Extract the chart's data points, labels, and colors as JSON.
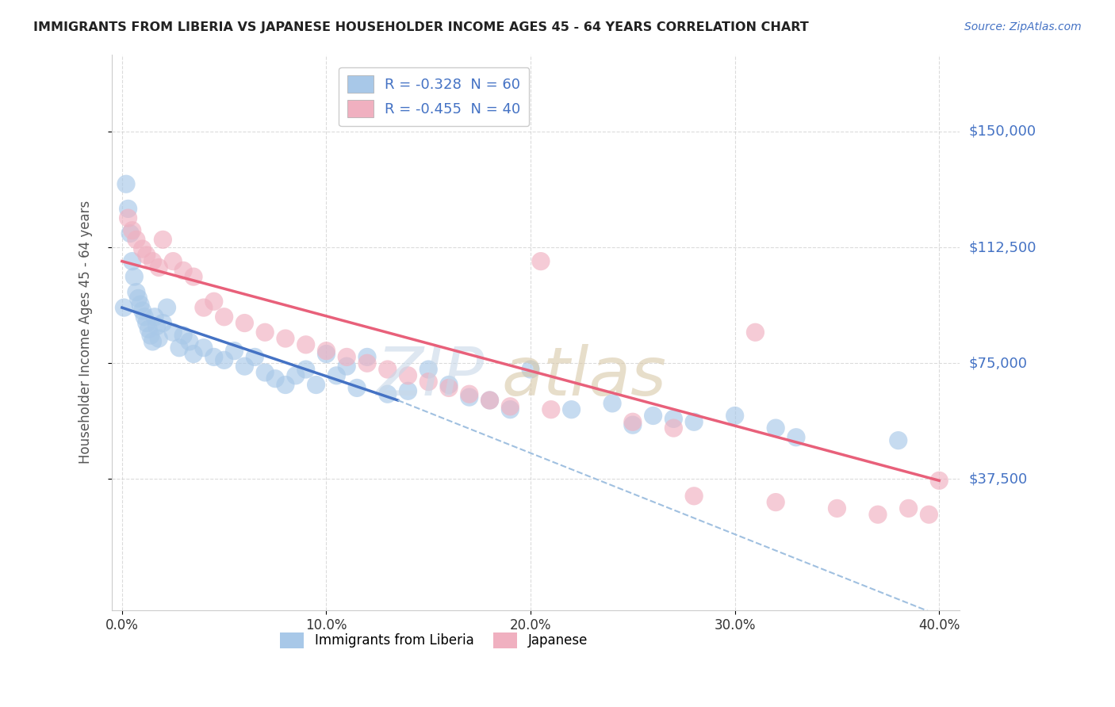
{
  "title": "IMMIGRANTS FROM LIBERIA VS JAPANESE HOUSEHOLDER INCOME AGES 45 - 64 YEARS CORRELATION CHART",
  "source": "Source: ZipAtlas.com",
  "ylabel": "Householder Income Ages 45 - 64 years",
  "x_tick_labels": [
    "0.0%",
    "10.0%",
    "20.0%",
    "30.0%",
    "40.0%"
  ],
  "x_tick_values": [
    0.0,
    10.0,
    20.0,
    30.0,
    40.0
  ],
  "y_tick_labels": [
    "$150,000",
    "$112,500",
    "$75,000",
    "$37,500"
  ],
  "y_tick_values": [
    150000,
    112500,
    75000,
    37500
  ],
  "xlim": [
    -0.5,
    41.0
  ],
  "ylim": [
    -5000,
    175000
  ],
  "legend_entries": [
    {
      "label": "R = -0.328  N = 60",
      "color": "#aec6e8"
    },
    {
      "label": "R = -0.455  N = 40",
      "color": "#f4b8c8"
    }
  ],
  "legend_bottom": [
    {
      "label": "Immigrants from Liberia",
      "color": "#aec6e8"
    },
    {
      "label": "Japanese",
      "color": "#f4b8c8"
    }
  ],
  "blue_scatter": [
    [
      0.1,
      93000
    ],
    [
      0.2,
      133000
    ],
    [
      0.3,
      125000
    ],
    [
      0.4,
      117000
    ],
    [
      0.5,
      108000
    ],
    [
      0.6,
      103000
    ],
    [
      0.7,
      98000
    ],
    [
      0.8,
      96000
    ],
    [
      0.9,
      94000
    ],
    [
      1.0,
      92000
    ],
    [
      1.1,
      90000
    ],
    [
      1.2,
      88000
    ],
    [
      1.3,
      86000
    ],
    [
      1.4,
      84000
    ],
    [
      1.5,
      82000
    ],
    [
      1.6,
      90000
    ],
    [
      1.7,
      87000
    ],
    [
      1.8,
      83000
    ],
    [
      2.0,
      88000
    ],
    [
      2.2,
      93000
    ],
    [
      2.5,
      85000
    ],
    [
      2.8,
      80000
    ],
    [
      3.0,
      84000
    ],
    [
      3.3,
      82000
    ],
    [
      3.5,
      78000
    ],
    [
      4.0,
      80000
    ],
    [
      4.5,
      77000
    ],
    [
      5.0,
      76000
    ],
    [
      5.5,
      79000
    ],
    [
      6.0,
      74000
    ],
    [
      6.5,
      77000
    ],
    [
      7.0,
      72000
    ],
    [
      7.5,
      70000
    ],
    [
      8.0,
      68000
    ],
    [
      8.5,
      71000
    ],
    [
      9.0,
      73000
    ],
    [
      9.5,
      68000
    ],
    [
      10.0,
      78000
    ],
    [
      10.5,
      71000
    ],
    [
      11.0,
      74000
    ],
    [
      11.5,
      67000
    ],
    [
      12.0,
      77000
    ],
    [
      13.0,
      65000
    ],
    [
      14.0,
      66000
    ],
    [
      15.0,
      73000
    ],
    [
      16.0,
      68000
    ],
    [
      17.0,
      64000
    ],
    [
      18.0,
      63000
    ],
    [
      19.0,
      60000
    ],
    [
      20.0,
      73000
    ],
    [
      22.0,
      60000
    ],
    [
      24.0,
      62000
    ],
    [
      25.0,
      55000
    ],
    [
      26.0,
      58000
    ],
    [
      27.0,
      57000
    ],
    [
      28.0,
      56000
    ],
    [
      30.0,
      58000
    ],
    [
      32.0,
      54000
    ],
    [
      33.0,
      51000
    ],
    [
      38.0,
      50000
    ]
  ],
  "pink_scatter": [
    [
      0.3,
      122000
    ],
    [
      0.5,
      118000
    ],
    [
      0.7,
      115000
    ],
    [
      1.0,
      112000
    ],
    [
      1.2,
      110000
    ],
    [
      1.5,
      108000
    ],
    [
      1.8,
      106000
    ],
    [
      2.0,
      115000
    ],
    [
      2.5,
      108000
    ],
    [
      3.0,
      105000
    ],
    [
      3.5,
      103000
    ],
    [
      4.0,
      93000
    ],
    [
      4.5,
      95000
    ],
    [
      5.0,
      90000
    ],
    [
      6.0,
      88000
    ],
    [
      7.0,
      85000
    ],
    [
      8.0,
      83000
    ],
    [
      9.0,
      81000
    ],
    [
      10.0,
      79000
    ],
    [
      11.0,
      77000
    ],
    [
      12.0,
      75000
    ],
    [
      13.0,
      73000
    ],
    [
      14.0,
      71000
    ],
    [
      15.0,
      69000
    ],
    [
      16.0,
      67000
    ],
    [
      17.0,
      65000
    ],
    [
      18.0,
      63000
    ],
    [
      19.0,
      61000
    ],
    [
      20.5,
      108000
    ],
    [
      21.0,
      60000
    ],
    [
      25.0,
      56000
    ],
    [
      27.0,
      54000
    ],
    [
      28.0,
      32000
    ],
    [
      31.0,
      85000
    ],
    [
      32.0,
      30000
    ],
    [
      35.0,
      28000
    ],
    [
      37.0,
      26000
    ],
    [
      38.5,
      28000
    ],
    [
      39.5,
      26000
    ],
    [
      40.0,
      37000
    ]
  ],
  "blue_line": {
    "x": [
      0.0,
      13.5
    ],
    "y": [
      93000,
      63000
    ]
  },
  "pink_line": {
    "x": [
      0.0,
      40.0
    ],
    "y": [
      108000,
      37000
    ]
  },
  "dashed_line": {
    "x": [
      13.5,
      40.5
    ],
    "y": [
      63000,
      -8000
    ]
  },
  "background_color": "#ffffff",
  "grid_color": "#cccccc",
  "blue_color": "#a8c8e8",
  "pink_color": "#f0b0c0",
  "blue_line_color": "#4472c4",
  "pink_line_color": "#e8607a",
  "dashed_line_color": "#a0c0e0",
  "title_color": "#222222",
  "source_color": "#4472c4",
  "axis_label_color": "#555555",
  "watermark_zip_color": "#c8d8e8",
  "watermark_atlas_color": "#d8c8a8"
}
